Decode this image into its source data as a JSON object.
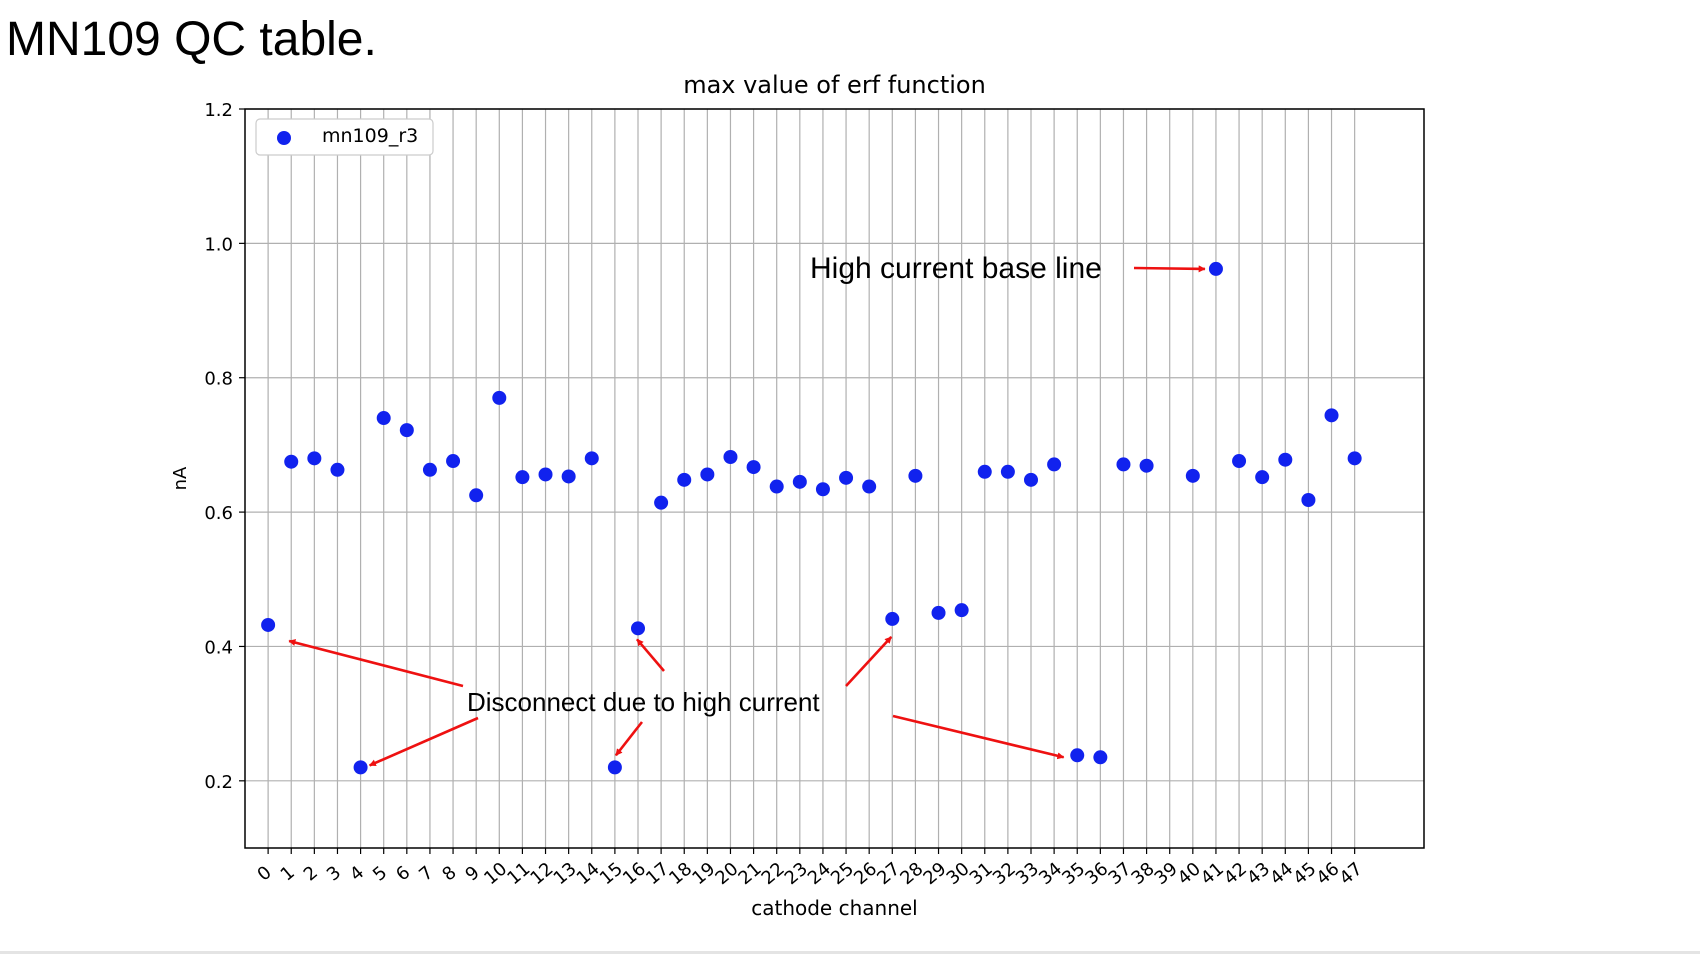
{
  "slide": {
    "title": "MN109 QC table."
  },
  "colors": {
    "marker": "#1122ee",
    "arrow": "#ee1111",
    "grid": "#b0b0b0",
    "axis": "#000000"
  },
  "chart_data": {
    "type": "scatter",
    "title": "max value of erf function",
    "xlabel": "cathode channel",
    "ylabel": "nA",
    "xlim": [
      -1.0,
      50.0
    ],
    "ylim": [
      0.1,
      1.2
    ],
    "xticks": [
      0,
      1,
      2,
      3,
      4,
      5,
      6,
      7,
      8,
      9,
      10,
      11,
      12,
      13,
      14,
      15,
      16,
      17,
      18,
      19,
      20,
      21,
      22,
      23,
      24,
      25,
      26,
      27,
      28,
      29,
      30,
      31,
      32,
      33,
      34,
      35,
      36,
      37,
      38,
      39,
      40,
      41,
      42,
      43,
      44,
      45,
      46,
      47
    ],
    "yticks": [
      0.2,
      0.4,
      0.6,
      0.8,
      1.0,
      1.2
    ],
    "grid": true,
    "legend": "top-left",
    "series": [
      {
        "name": "mn109_r3",
        "x": [
          0,
          1,
          2,
          3,
          4,
          5,
          6,
          7,
          8,
          9,
          10,
          11,
          12,
          13,
          14,
          15,
          16,
          17,
          18,
          19,
          20,
          21,
          22,
          23,
          24,
          25,
          26,
          27,
          28,
          29,
          30,
          31,
          32,
          33,
          34,
          35,
          36,
          37,
          38,
          40,
          41,
          42,
          43,
          44,
          45,
          46,
          47
        ],
        "y": [
          0.432,
          0.675,
          0.68,
          0.663,
          0.22,
          0.74,
          0.722,
          0.663,
          0.676,
          0.625,
          0.77,
          0.652,
          0.656,
          0.653,
          0.68,
          0.22,
          0.427,
          0.614,
          0.648,
          0.656,
          0.682,
          0.667,
          0.638,
          0.645,
          0.634,
          0.651,
          0.638,
          0.441,
          0.654,
          0.45,
          0.454,
          0.66,
          0.66,
          0.648,
          0.671,
          0.238,
          0.235,
          0.671,
          0.669,
          0.654,
          0.962,
          0.676,
          0.652,
          0.678,
          0.618,
          0.744,
          0.68
        ]
      }
    ],
    "annotations": [
      {
        "text": "High current base line",
        "targets": [
          [
            41,
            0.962
          ]
        ]
      },
      {
        "text": "Disconnect due to high current",
        "targets": [
          [
            0,
            0.432
          ],
          [
            4,
            0.22
          ],
          [
            15,
            0.22
          ],
          [
            16,
            0.427
          ],
          [
            27,
            0.441
          ],
          [
            34.5,
            0.238
          ]
        ]
      }
    ]
  }
}
